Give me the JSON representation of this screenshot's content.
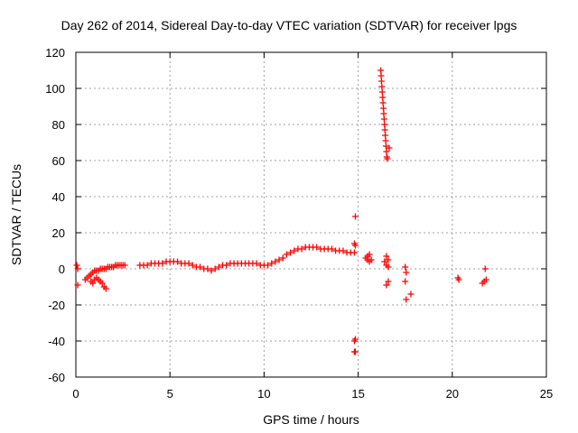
{
  "chart_data": {
    "type": "scatter",
    "title": "Day 262 of 2014, Sidereal Day-to-day VTEC variation (SDTVAR) for receiver lpgs",
    "xlabel": "GPS time / hours",
    "ylabel": "SDTVAR / TECUs",
    "xlim": [
      0,
      25
    ],
    "ylim": [
      -60,
      120
    ],
    "xticks": [
      "0",
      "5",
      "10",
      "15",
      "20",
      "25"
    ],
    "yticks": [
      "-60",
      "-40",
      "-20",
      "0",
      "20",
      "40",
      "60",
      "80",
      "100",
      "120"
    ],
    "grid": true,
    "marker": "+",
    "color": "#ff0000",
    "series": [
      {
        "name": "SDTVAR",
        "points": [
          [
            0.05,
            2
          ],
          [
            0.1,
            0
          ],
          [
            0.1,
            -9
          ],
          [
            0.5,
            -6
          ],
          [
            0.6,
            -5
          ],
          [
            0.7,
            -4
          ],
          [
            0.8,
            -3
          ],
          [
            0.8,
            -7
          ],
          [
            0.9,
            -2
          ],
          [
            0.9,
            -8
          ],
          [
            1.0,
            -1
          ],
          [
            1.0,
            -6
          ],
          [
            1.1,
            -1
          ],
          [
            1.1,
            -5
          ],
          [
            1.2,
            -1
          ],
          [
            1.2,
            -6
          ],
          [
            1.3,
            0
          ],
          [
            1.3,
            -7
          ],
          [
            1.4,
            0
          ],
          [
            1.4,
            -8
          ],
          [
            1.5,
            0
          ],
          [
            1.5,
            -10
          ],
          [
            1.6,
            0
          ],
          [
            1.6,
            -11
          ],
          [
            1.7,
            1
          ],
          [
            1.8,
            1
          ],
          [
            1.9,
            1
          ],
          [
            2.0,
            1
          ],
          [
            2.1,
            2
          ],
          [
            2.2,
            2
          ],
          [
            2.3,
            2
          ],
          [
            2.4,
            2
          ],
          [
            2.5,
            2
          ],
          [
            2.6,
            2
          ],
          [
            3.4,
            2
          ],
          [
            3.6,
            2
          ],
          [
            3.8,
            2
          ],
          [
            4.0,
            3
          ],
          [
            4.2,
            3
          ],
          [
            4.4,
            3
          ],
          [
            4.6,
            3
          ],
          [
            4.8,
            4
          ],
          [
            5.0,
            4
          ],
          [
            5.2,
            4
          ],
          [
            5.4,
            4
          ],
          [
            5.6,
            3
          ],
          [
            5.8,
            3
          ],
          [
            6.0,
            3
          ],
          [
            6.2,
            2
          ],
          [
            6.4,
            1
          ],
          [
            6.6,
            1
          ],
          [
            6.8,
            0
          ],
          [
            7.0,
            0
          ],
          [
            7.2,
            -1
          ],
          [
            7.4,
            0
          ],
          [
            7.6,
            1
          ],
          [
            7.8,
            2
          ],
          [
            8.0,
            2
          ],
          [
            8.2,
            3
          ],
          [
            8.4,
            3
          ],
          [
            8.6,
            3
          ],
          [
            8.8,
            3
          ],
          [
            9.0,
            3
          ],
          [
            9.2,
            3
          ],
          [
            9.4,
            3
          ],
          [
            9.6,
            3
          ],
          [
            9.8,
            2
          ],
          [
            10.0,
            2
          ],
          [
            10.2,
            2
          ],
          [
            10.4,
            3
          ],
          [
            10.6,
            4
          ],
          [
            10.8,
            5
          ],
          [
            11.0,
            6
          ],
          [
            11.2,
            8
          ],
          [
            11.4,
            9
          ],
          [
            11.6,
            10
          ],
          [
            11.8,
            11
          ],
          [
            12.0,
            11
          ],
          [
            12.2,
            12
          ],
          [
            12.4,
            12
          ],
          [
            12.6,
            12
          ],
          [
            12.8,
            12
          ],
          [
            13.0,
            11
          ],
          [
            13.2,
            11
          ],
          [
            13.4,
            11
          ],
          [
            13.6,
            11
          ],
          [
            13.8,
            10
          ],
          [
            14.0,
            10
          ],
          [
            14.2,
            10
          ],
          [
            14.4,
            9
          ],
          [
            14.6,
            9
          ],
          [
            14.8,
            9
          ],
          [
            14.85,
            29
          ],
          [
            14.8,
            14
          ],
          [
            14.85,
            13
          ],
          [
            14.8,
            -40
          ],
          [
            14.85,
            -39
          ],
          [
            14.8,
            -46
          ],
          [
            14.85,
            -46
          ],
          [
            15.4,
            6
          ],
          [
            15.5,
            7
          ],
          [
            15.6,
            8
          ],
          [
            15.7,
            5
          ],
          [
            15.6,
            4
          ],
          [
            15.5,
            5
          ],
          [
            16.2,
            110
          ],
          [
            16.22,
            107
          ],
          [
            16.24,
            104
          ],
          [
            16.26,
            101
          ],
          [
            16.28,
            98
          ],
          [
            16.3,
            95
          ],
          [
            16.32,
            92
          ],
          [
            16.34,
            89
          ],
          [
            16.36,
            86
          ],
          [
            16.38,
            83
          ],
          [
            16.4,
            80
          ],
          [
            16.42,
            77
          ],
          [
            16.44,
            74
          ],
          [
            16.46,
            71
          ],
          [
            16.48,
            68
          ],
          [
            16.5,
            65
          ],
          [
            16.52,
            62
          ],
          [
            16.55,
            61
          ],
          [
            16.65,
            67
          ],
          [
            16.4,
            4
          ],
          [
            16.5,
            2
          ],
          [
            16.6,
            1
          ],
          [
            16.5,
            7
          ],
          [
            16.6,
            5
          ],
          [
            16.5,
            -9
          ],
          [
            16.6,
            -7
          ],
          [
            17.5,
            1
          ],
          [
            17.55,
            -2
          ],
          [
            17.5,
            -7
          ],
          [
            17.55,
            -17
          ],
          [
            17.8,
            -14
          ],
          [
            20.3,
            -5
          ],
          [
            20.35,
            -6
          ],
          [
            21.6,
            -8
          ],
          [
            21.7,
            -7
          ],
          [
            21.75,
            0
          ],
          [
            21.8,
            -6
          ]
        ]
      }
    ]
  }
}
